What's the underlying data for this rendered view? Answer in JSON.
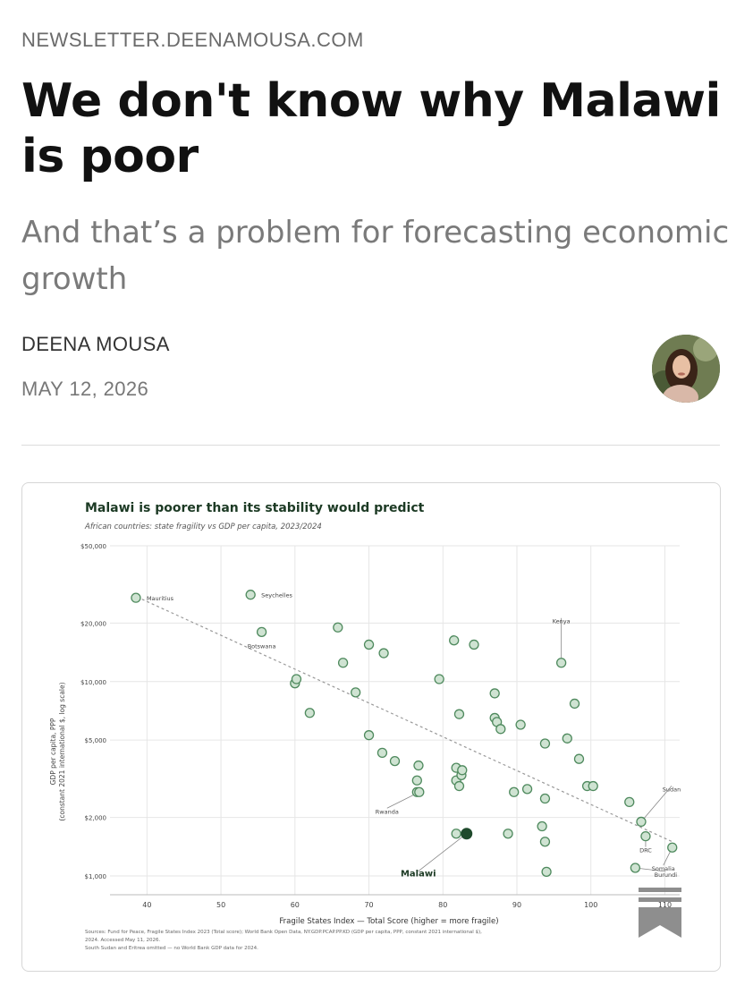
{
  "header": {
    "site": "NEWSLETTER.DEENAMOUSA.COM",
    "title": "We don't know why Malawi is poor",
    "subtitle": "And that’s a problem for forecasting economic growth",
    "author": "DEENA MOUSA",
    "date": "MAY 12, 2026"
  },
  "colors": {
    "point_fill": "#cfe3d2",
    "point_stroke": "#4f8a5e",
    "highlight": "#1f4a2c",
    "title_green": "#1c3a24",
    "trend": "#999999"
  },
  "icons": {
    "bookmark": "bookmark-icon",
    "avatar": "author-avatar"
  },
  "chart_data": {
    "type": "scatter",
    "title": "Malawi is poorer than its stability would predict",
    "subtitle": "African countries: state fragility vs GDP per capita, 2023/2024",
    "xlabel": "Fragile States Index — Total Score (higher = more fragile)",
    "ylabel": "GDP per capita, PPP (constant 2021 international $, log scale)",
    "ylabel_lines": [
      "GDP per capita, PPP",
      "(constant 2021 international $, log scale)"
    ],
    "xlim": [
      35,
      112
    ],
    "ylim": [
      800,
      50000
    ],
    "y_scale": "log",
    "x_ticks": [
      40,
      50,
      60,
      70,
      80,
      90,
      100,
      110
    ],
    "x_tick_labels": [
      "40",
      "50",
      "60",
      "70",
      "80",
      "90",
      "100",
      "110"
    ],
    "y_ticks": [
      1000,
      2000,
      5000,
      10000,
      20000,
      50000
    ],
    "y_tick_labels": [
      "$1,000",
      "$2,000",
      "$5,000",
      "$10,000",
      "$20,000",
      "$50,000"
    ],
    "grid": true,
    "trendline": {
      "x": [
        38,
        111
      ],
      "y": [
        28000,
        1500
      ]
    },
    "points": [
      {
        "x": 38.5,
        "y": 27000,
        "label": "Mauritius"
      },
      {
        "x": 54,
        "y": 28000,
        "label": "Seychelles"
      },
      {
        "x": 55.5,
        "y": 18000,
        "label": "Botswana"
      },
      {
        "x": 60,
        "y": 9800
      },
      {
        "x": 60.2,
        "y": 10300
      },
      {
        "x": 62,
        "y": 6900
      },
      {
        "x": 65.8,
        "y": 19000
      },
      {
        "x": 66.5,
        "y": 12500
      },
      {
        "x": 68.2,
        "y": 8800
      },
      {
        "x": 70,
        "y": 15500
      },
      {
        "x": 70,
        "y": 5300
      },
      {
        "x": 71.8,
        "y": 4300
      },
      {
        "x": 72,
        "y": 14000
      },
      {
        "x": 73.5,
        "y": 3900
      },
      {
        "x": 76.5,
        "y": 3100
      },
      {
        "x": 76.5,
        "y": 2700
      },
      {
        "x": 76.7,
        "y": 3700
      },
      {
        "x": 76.8,
        "y": 2700,
        "label": "Rwanda"
      },
      {
        "x": 79.5,
        "y": 10300
      },
      {
        "x": 81.5,
        "y": 16300
      },
      {
        "x": 81.8,
        "y": 3600
      },
      {
        "x": 81.8,
        "y": 3100
      },
      {
        "x": 81.8,
        "y": 1650
      },
      {
        "x": 82.2,
        "y": 6800
      },
      {
        "x": 82.2,
        "y": 2900
      },
      {
        "x": 82.5,
        "y": 3300
      },
      {
        "x": 82.6,
        "y": 3500
      },
      {
        "x": 83.2,
        "y": 1650,
        "label": "Malawi",
        "highlight": true
      },
      {
        "x": 84.2,
        "y": 15500
      },
      {
        "x": 87,
        "y": 8700
      },
      {
        "x": 87,
        "y": 6500
      },
      {
        "x": 87.3,
        "y": 6200
      },
      {
        "x": 87.8,
        "y": 5700
      },
      {
        "x": 88.8,
        "y": 1650
      },
      {
        "x": 89.6,
        "y": 2700
      },
      {
        "x": 90.5,
        "y": 6000
      },
      {
        "x": 91.4,
        "y": 2800
      },
      {
        "x": 93.4,
        "y": 1800
      },
      {
        "x": 93.8,
        "y": 4800
      },
      {
        "x": 93.8,
        "y": 2500
      },
      {
        "x": 93.8,
        "y": 1500
      },
      {
        "x": 94,
        "y": 1050
      },
      {
        "x": 96,
        "y": 12500,
        "label": "Kenya"
      },
      {
        "x": 96.8,
        "y": 5100
      },
      {
        "x": 97.8,
        "y": 7700
      },
      {
        "x": 98.4,
        "y": 4000
      },
      {
        "x": 99.5,
        "y": 2900
      },
      {
        "x": 100.3,
        "y": 2900
      },
      {
        "x": 105.2,
        "y": 2400
      },
      {
        "x": 106,
        "y": 1100,
        "label": "Burundi"
      },
      {
        "x": 106.8,
        "y": 1900,
        "label": "Sudan"
      },
      {
        "x": 107.4,
        "y": 1600,
        "label": "DRC"
      },
      {
        "x": 111,
        "y": 1400,
        "label": "Somalia"
      }
    ],
    "sources": [
      "Sources: Fund for Peace, Fragile States Index 2023 (Total score); World Bank Open Data, NY.GDP.PCAP.PP.KD (GDP per capita, PPP, constant 2021 international $),",
      "2024. Accessed May 11, 2026.",
      "South Sudan and Eritrea omitted — no World Bank GDP data for 2024."
    ]
  }
}
